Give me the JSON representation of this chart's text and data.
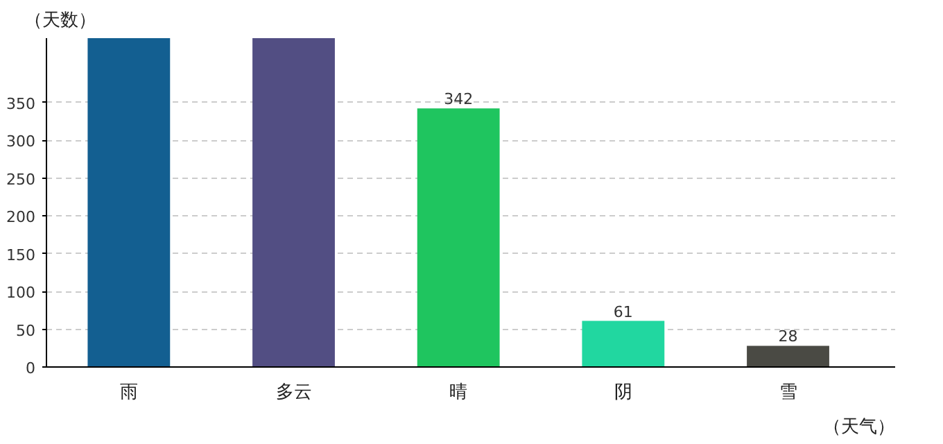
{
  "chart_data": {
    "type": "bar",
    "ylabel": "（天数）",
    "xlabel": "（天气）",
    "categories": [
      "雨",
      "多云",
      "晴",
      "阴",
      "雪"
    ],
    "values": [
      435,
      435,
      342,
      61,
      28
    ],
    "colors": [
      "#135f91",
      "#524e83",
      "#1fc55f",
      "#21d7a0",
      "#4a4a44"
    ],
    "value_labels": [
      null,
      null,
      "342",
      "61",
      "28"
    ],
    "ylim": [
      0,
      435
    ],
    "yticks": [
      0,
      50,
      100,
      150,
      200,
      250,
      300,
      350
    ],
    "grid": "y"
  }
}
